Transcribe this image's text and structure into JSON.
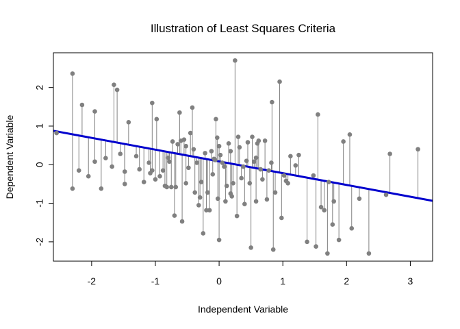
{
  "chart_data": {
    "type": "scatter",
    "title": "Illustration of Least Squares Criteria",
    "xlabel": "Independent Variable",
    "ylabel": "Dependent Variable",
    "xlim": [
      -2.6,
      3.35
    ],
    "ylim": [
      -2.5,
      2.9
    ],
    "x_ticks": [
      -2,
      -1,
      0,
      1,
      2,
      3
    ],
    "y_ticks": [
      -2,
      -1,
      0,
      1,
      2
    ],
    "grid": false,
    "point_color": "#808080",
    "residual_color": "#808080",
    "fit_line": {
      "slope": -0.305,
      "intercept": 0.085,
      "color": "#0000CD"
    },
    "points": [
      [
        -2.55,
        0.82
      ],
      [
        -2.3,
        2.36
      ],
      [
        -2.3,
        -0.62
      ],
      [
        -2.2,
        -0.15
      ],
      [
        -2.15,
        1.55
      ],
      [
        -2.05,
        -0.3
      ],
      [
        -1.95,
        1.38
      ],
      [
        -1.95,
        0.08
      ],
      [
        -1.85,
        -0.62
      ],
      [
        -1.78,
        0.17
      ],
      [
        -1.68,
        -0.05
      ],
      [
        -1.65,
        2.07
      ],
      [
        -1.6,
        1.94
      ],
      [
        -1.55,
        0.28
      ],
      [
        -1.48,
        -0.5
      ],
      [
        -1.48,
        -0.18
      ],
      [
        -1.42,
        1.1
      ],
      [
        -1.3,
        0.22
      ],
      [
        -1.25,
        -0.12
      ],
      [
        -1.18,
        -0.45
      ],
      [
        -1.1,
        0.05
      ],
      [
        -1.08,
        -0.22
      ],
      [
        -1.05,
        1.6
      ],
      [
        -1.05,
        -0.15
      ],
      [
        -1.0,
        -0.38
      ],
      [
        -0.98,
        1.18
      ],
      [
        -0.93,
        -0.3
      ],
      [
        -0.88,
        -0.15
      ],
      [
        -0.85,
        -0.55
      ],
      [
        -0.82,
        -0.58
      ],
      [
        -0.8,
        0.18
      ],
      [
        -0.78,
        0.08
      ],
      [
        -0.75,
        -0.58
      ],
      [
        -0.73,
        0.6
      ],
      [
        -0.7,
        -1.32
      ],
      [
        -0.68,
        -0.58
      ],
      [
        -0.65,
        0.53
      ],
      [
        -0.62,
        1.35
      ],
      [
        -0.6,
        0.62
      ],
      [
        -0.58,
        -1.47
      ],
      [
        -0.55,
        0.65
      ],
      [
        -0.52,
        0.48
      ],
      [
        -0.52,
        -0.48
      ],
      [
        -0.48,
        -0.08
      ],
      [
        -0.45,
        0.82
      ],
      [
        -0.42,
        1.48
      ],
      [
        -0.4,
        0.4
      ],
      [
        -0.38,
        -0.72
      ],
      [
        -0.35,
        0.05
      ],
      [
        -0.32,
        -1.05
      ],
      [
        -0.3,
        -0.85
      ],
      [
        -0.28,
        -0.45
      ],
      [
        -0.25,
        -1.78
      ],
      [
        -0.22,
        0.3
      ],
      [
        -0.2,
        -1.18
      ],
      [
        -0.18,
        -0.72
      ],
      [
        -0.15,
        -1.18
      ],
      [
        -0.12,
        0.35
      ],
      [
        -0.1,
        -0.25
      ],
      [
        -0.08,
        0.15
      ],
      [
        -0.06,
        0.12
      ],
      [
        -0.05,
        1.18
      ],
      [
        -0.03,
        0.7
      ],
      [
        -0.02,
        -0.88
      ],
      [
        0.0,
        -1.95
      ],
      [
        0.0,
        0.48
      ],
      [
        0.02,
        0.25
      ],
      [
        0.05,
        0.05
      ],
      [
        0.08,
        -0.05
      ],
      [
        0.1,
        -0.95
      ],
      [
        0.12,
        -0.55
      ],
      [
        0.15,
        0.55
      ],
      [
        0.18,
        -0.75
      ],
      [
        0.18,
        0.35
      ],
      [
        0.2,
        -0.82
      ],
      [
        0.22,
        -0.48
      ],
      [
        0.25,
        2.7
      ],
      [
        0.28,
        -1.33
      ],
      [
        0.3,
        0.72
      ],
      [
        0.32,
        0.45
      ],
      [
        0.35,
        -0.35
      ],
      [
        0.38,
        -0.05
      ],
      [
        0.4,
        -1.02
      ],
      [
        0.43,
        0.1
      ],
      [
        0.45,
        0.58
      ],
      [
        0.48,
        -0.48
      ],
      [
        0.5,
        -2.15
      ],
      [
        0.52,
        0.72
      ],
      [
        0.55,
        0.08
      ],
      [
        0.58,
        0.18
      ],
      [
        0.58,
        -0.95
      ],
      [
        0.6,
        0.55
      ],
      [
        0.62,
        0.62
      ],
      [
        0.65,
        -0.12
      ],
      [
        0.68,
        -0.38
      ],
      [
        0.72,
        0.62
      ],
      [
        0.75,
        -0.9
      ],
      [
        0.78,
        -0.15
      ],
      [
        0.82,
        0.05
      ],
      [
        0.83,
        1.62
      ],
      [
        0.85,
        -2.2
      ],
      [
        0.88,
        -0.72
      ],
      [
        0.95,
        2.15
      ],
      [
        0.98,
        -1.38
      ],
      [
        1.02,
        -0.28
      ],
      [
        1.05,
        -0.42
      ],
      [
        1.08,
        -0.48
      ],
      [
        1.12,
        0.22
      ],
      [
        1.2,
        -0.02
      ],
      [
        1.25,
        0.25
      ],
      [
        1.38,
        -2.0
      ],
      [
        1.48,
        -0.28
      ],
      [
        1.52,
        -2.12
      ],
      [
        1.55,
        1.3
      ],
      [
        1.6,
        -1.1
      ],
      [
        1.65,
        -1.18
      ],
      [
        1.7,
        -2.3
      ],
      [
        1.72,
        -0.45
      ],
      [
        1.78,
        -1.55
      ],
      [
        1.8,
        -0.95
      ],
      [
        1.88,
        -1.95
      ],
      [
        1.95,
        0.6
      ],
      [
        2.05,
        0.78
      ],
      [
        2.08,
        -1.65
      ],
      [
        2.2,
        -0.88
      ],
      [
        2.35,
        -2.3
      ],
      [
        2.62,
        -0.78
      ],
      [
        2.68,
        0.28
      ],
      [
        3.12,
        0.4
      ]
    ]
  }
}
